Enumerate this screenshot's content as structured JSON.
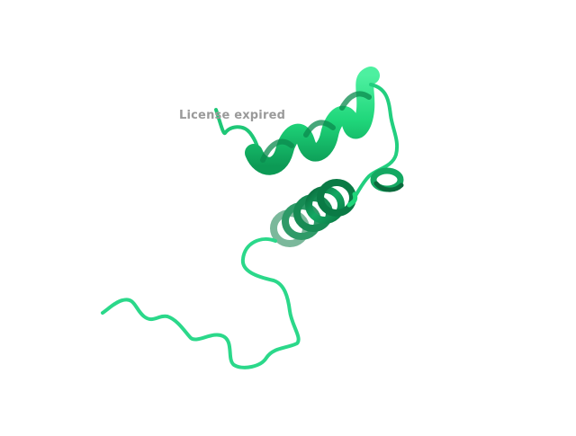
{
  "viewer": {
    "watermark_text": "License expired",
    "background_color": "#ffffff",
    "watermark_color": "#9a9a9a"
  },
  "molecule": {
    "representation": "cartoon",
    "colors": {
      "helix": "#1fd67a",
      "helix_dark": "#0a7a45",
      "loop": "#2bd88a",
      "loop_outline": "#15a560"
    }
  }
}
